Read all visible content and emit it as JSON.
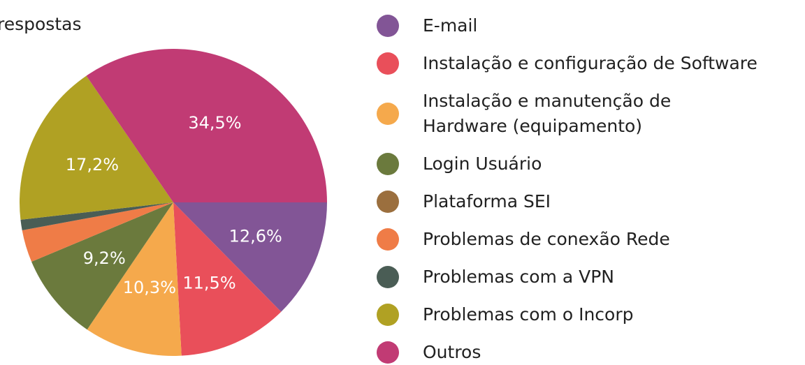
{
  "chart_data": {
    "type": "pie",
    "subtitle": "respostas",
    "categories": [
      "E-mail",
      "Instalação e configuração de Software",
      "Instalação e manutenção de Hardware (equipamento)",
      "Login Usuário",
      "Plataforma SEI",
      "Problemas de conexão Rede",
      "Problemas com a VPN",
      "Problemas com o Incorp",
      "Outros"
    ],
    "values": [
      12.6,
      11.5,
      10.3,
      9.2,
      0,
      3.4,
      1.1,
      17.2,
      34.5
    ],
    "value_labels": [
      "12,6%",
      "11,5%",
      "10,3%",
      "9,2%",
      null,
      null,
      null,
      "17,2%",
      "34,5%"
    ],
    "colors": [
      "#825596",
      "#e94f5a",
      "#f5a94c",
      "#6b7a3d",
      "#9b6f3e",
      "#ef7c47",
      "#4a5d55",
      "#b0a123",
      "#c13b74"
    ],
    "legend": "right"
  }
}
